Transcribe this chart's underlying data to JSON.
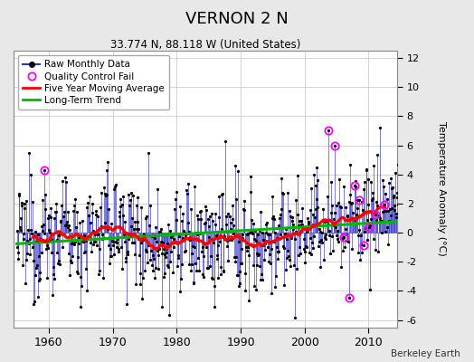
{
  "title": "VERNON 2 N",
  "subtitle": "33.774 N, 88.118 W (United States)",
  "ylabel": "Temperature Anomaly (°C)",
  "xlabel_ticks": [
    1960,
    1970,
    1980,
    1990,
    2000,
    2010
  ],
  "xlim": [
    1954.5,
    2014.5
  ],
  "ylim": [
    -6.5,
    12.5
  ],
  "yticks": [
    -6,
    -4,
    -2,
    0,
    2,
    4,
    6,
    8,
    10,
    12
  ],
  "watermark": "Berkeley Earth",
  "background_color": "#e8e8e8",
  "plot_bg_color": "#ffffff",
  "raw_line_color": "#3333cc",
  "raw_dot_color": "#000000",
  "qc_fail_color": "#ff00ff",
  "moving_avg_color": "#ff0000",
  "trend_color": "#00bb00",
  "seed": 12345
}
